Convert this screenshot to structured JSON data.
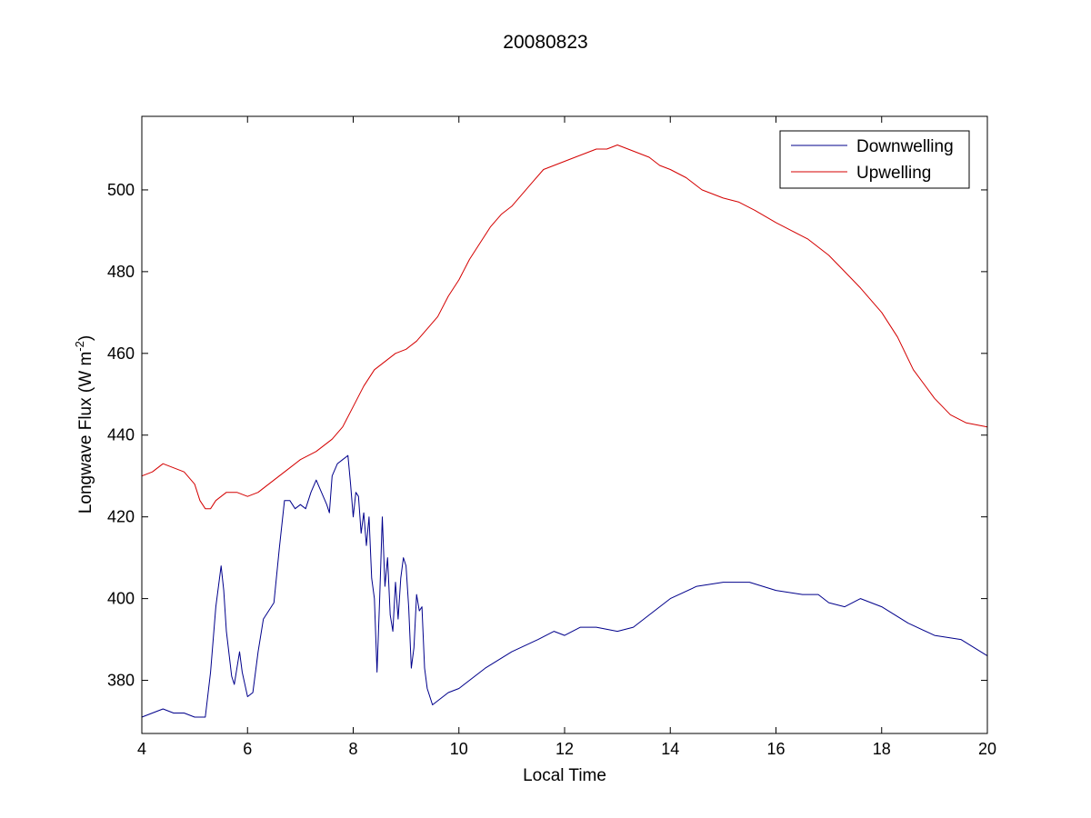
{
  "chart_data": {
    "type": "line",
    "title": "20080823",
    "xlabel": "Local Time",
    "ylabel": "Longwave Flux (W m",
    "ylabel_sup": "-2",
    "ylabel_suffix": ")",
    "xlim": [
      4,
      20
    ],
    "ylim": [
      367,
      518
    ],
    "xticks": [
      4,
      6,
      8,
      10,
      12,
      14,
      16,
      18,
      20
    ],
    "yticks": [
      380,
      400,
      420,
      440,
      460,
      480,
      500
    ],
    "grid": false,
    "legend_position": "top-right",
    "series": [
      {
        "name": "Downwelling",
        "color": "#00008b",
        "x": [
          4.0,
          4.2,
          4.4,
          4.6,
          4.8,
          5.0,
          5.2,
          5.3,
          5.4,
          5.5,
          5.55,
          5.6,
          5.7,
          5.75,
          5.8,
          5.85,
          5.9,
          6.0,
          6.1,
          6.2,
          6.3,
          6.4,
          6.5,
          6.6,
          6.7,
          6.8,
          6.9,
          7.0,
          7.1,
          7.2,
          7.3,
          7.4,
          7.5,
          7.55,
          7.6,
          7.7,
          7.8,
          7.9,
          7.95,
          8.0,
          8.05,
          8.1,
          8.15,
          8.2,
          8.25,
          8.3,
          8.35,
          8.4,
          8.45,
          8.5,
          8.55,
          8.6,
          8.65,
          8.7,
          8.75,
          8.8,
          8.85,
          8.9,
          8.95,
          9.0,
          9.05,
          9.1,
          9.15,
          9.2,
          9.25,
          9.3,
          9.35,
          9.4,
          9.5,
          9.6,
          9.8,
          10.0,
          10.5,
          11.0,
          11.5,
          11.8,
          12.0,
          12.3,
          12.6,
          13.0,
          13.3,
          13.6,
          14.0,
          14.5,
          15.0,
          15.5,
          16.0,
          16.5,
          16.8,
          17.0,
          17.3,
          17.6,
          18.0,
          18.5,
          19.0,
          19.5,
          20.0
        ],
        "values": [
          371,
          372,
          373,
          372,
          372,
          371,
          371,
          382,
          398,
          408,
          402,
          392,
          381,
          379,
          383,
          387,
          382,
          376,
          377,
          387,
          395,
          397,
          399,
          412,
          424,
          424,
          422,
          423,
          422,
          426,
          429,
          426,
          423,
          421,
          430,
          433,
          434,
          435,
          428,
          420,
          426,
          425,
          416,
          421,
          413,
          420,
          405,
          400,
          382,
          400,
          420,
          403,
          410,
          396,
          392,
          404,
          395,
          405,
          410,
          408,
          398,
          383,
          388,
          401,
          397,
          398,
          383,
          378,
          374,
          375,
          377,
          378,
          383,
          387,
          390,
          392,
          391,
          393,
          393,
          392,
          393,
          396,
          400,
          403,
          404,
          404,
          402,
          401,
          401,
          399,
          398,
          400,
          398,
          394,
          391,
          390,
          386
        ]
      },
      {
        "name": "Upwelling",
        "color": "#d40000",
        "x": [
          4.0,
          4.2,
          4.4,
          4.6,
          4.8,
          5.0,
          5.1,
          5.2,
          5.3,
          5.4,
          5.6,
          5.8,
          6.0,
          6.2,
          6.5,
          6.8,
          7.0,
          7.3,
          7.6,
          7.8,
          8.0,
          8.2,
          8.4,
          8.6,
          8.8,
          9.0,
          9.2,
          9.4,
          9.6,
          9.8,
          10.0,
          10.2,
          10.4,
          10.6,
          10.8,
          11.0,
          11.2,
          11.4,
          11.6,
          11.8,
          12.0,
          12.2,
          12.4,
          12.6,
          12.8,
          13.0,
          13.2,
          13.4,
          13.6,
          13.8,
          14.0,
          14.3,
          14.6,
          15.0,
          15.3,
          15.6,
          16.0,
          16.3,
          16.6,
          17.0,
          17.3,
          17.6,
          18.0,
          18.3,
          18.6,
          19.0,
          19.3,
          19.6,
          20.0
        ],
        "values": [
          430,
          431,
          433,
          432,
          431,
          428,
          424,
          422,
          422,
          424,
          426,
          426,
          425,
          426,
          429,
          432,
          434,
          436,
          439,
          442,
          447,
          452,
          456,
          458,
          460,
          461,
          463,
          466,
          469,
          474,
          478,
          483,
          487,
          491,
          494,
          496,
          499,
          502,
          505,
          506,
          507,
          508,
          509,
          510,
          510,
          511,
          510,
          509,
          508,
          506,
          505,
          503,
          500,
          498,
          497,
          495,
          492,
          490,
          488,
          484,
          480,
          476,
          470,
          464,
          456,
          449,
          445,
          443,
          442
        ]
      }
    ]
  }
}
